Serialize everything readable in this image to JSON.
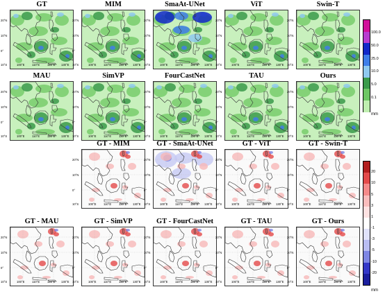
{
  "prediction_panels": [
    {
      "key": "gt",
      "title": "GT"
    },
    {
      "key": "mim",
      "title": "MIM"
    },
    {
      "key": "smaat",
      "title": "SmaAt-UNet"
    },
    {
      "key": "vit",
      "title": "ViT"
    },
    {
      "key": "swin",
      "title": "Swin-T"
    },
    {
      "key": "mau",
      "title": "MAU"
    },
    {
      "key": "simvp",
      "title": "SimVP"
    },
    {
      "key": "fourcast",
      "title": "FourCastNet"
    },
    {
      "key": "tau",
      "title": "TAU"
    },
    {
      "key": "ours",
      "title": "Ours"
    }
  ],
  "difference_panels": [
    {
      "key": "d_mim",
      "title": "GT - MIM"
    },
    {
      "key": "d_smaat",
      "title": "GT - SmaAt-UNet"
    },
    {
      "key": "d_vit",
      "title": "GT - ViT"
    },
    {
      "key": "d_swin",
      "title": "GT - Swin-T"
    },
    {
      "key": "d_mau",
      "title": "GT - MAU"
    },
    {
      "key": "d_simvp",
      "title": "GT - SimVP"
    },
    {
      "key": "d_fourcast",
      "title": "GT - FourCastNet"
    },
    {
      "key": "d_tau",
      "title": "GT - TAU"
    },
    {
      "key": "d_ours",
      "title": "GT - Ours"
    }
  ],
  "axes": {
    "lat_labels": [
      "20°N",
      "10°N",
      "0°",
      "10°S"
    ],
    "lon_labels": [
      "100°E",
      "110°E",
      "120°E",
      "130°E"
    ]
  },
  "precip_colorbar": {
    "unit": "mm",
    "ticks": [
      "100.0",
      "50.0",
      "25.0",
      "10.0",
      "5.0",
      "0.1"
    ],
    "colors": [
      "#d10f9a",
      "#b83bd0",
      "#1228c8",
      "#3f7ee8",
      "#8fc9ef",
      "#3a9a4a",
      "#6ec765",
      "#bfeeb0"
    ]
  },
  "diff_colorbar": {
    "unit": "mm",
    "ticks": [
      "20",
      "10",
      "5",
      "3",
      "1",
      "-1",
      "-3",
      "-5",
      "-10",
      "-20"
    ],
    "colors": [
      "#b21f1f",
      "#e34a4a",
      "#f48a8a",
      "#f9bcbc",
      "#fde1e1",
      "#ffffff",
      "#e0e2fa",
      "#b9bdf2",
      "#7e86e4",
      "#3438c8",
      "#1c1f9e"
    ]
  },
  "palette": {
    "precip_base": "#c8f0bd",
    "precip_mid": "#78cc6c",
    "precip_dark": "#3a9a4a",
    "precip_light_blue": "#8fc9ef",
    "precip_blue": "#3f7ee8",
    "precip_deep_blue": "#1228c8",
    "diff_red": "#e34a4a",
    "diff_pink": "#f7b8b8",
    "diff_blue": "#7e86e4",
    "diff_lightblue": "#c5c9f4",
    "coast": "#333333"
  }
}
